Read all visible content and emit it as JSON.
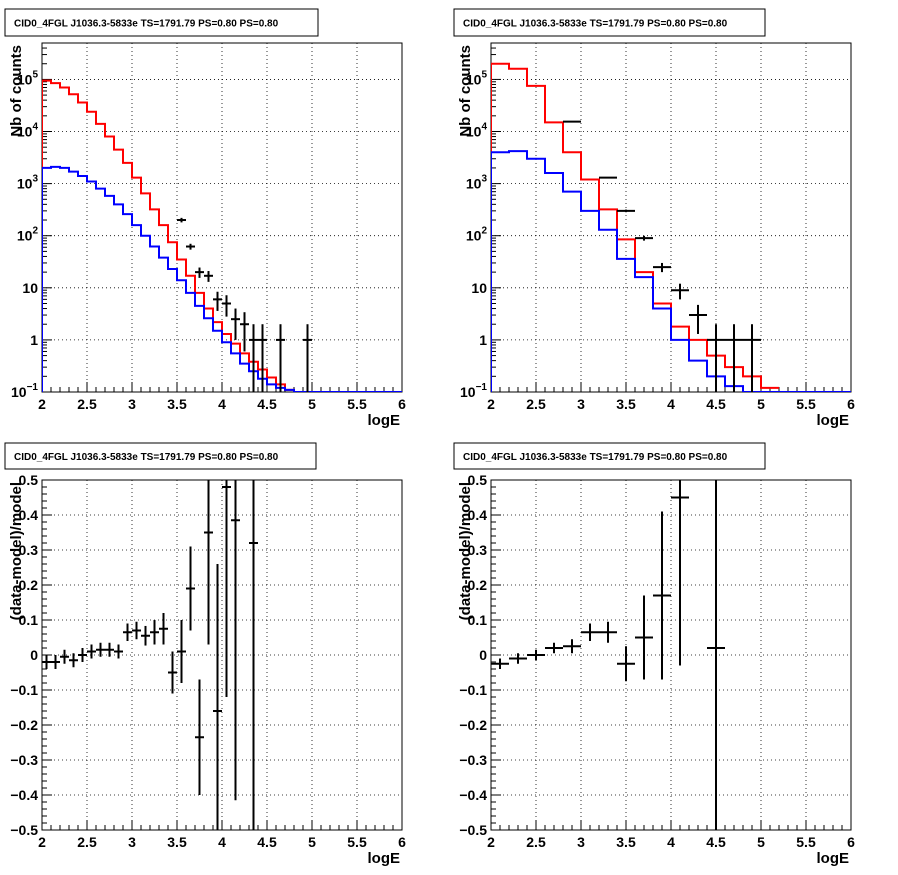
{
  "chart_data": [
    {
      "type": "line",
      "panel": "top-left",
      "title": "CID0_4FGL J1036.3-5833e TS=1791.79 PS=0.80 PS=0.80",
      "xlabel": "logE",
      "ylabel": "Nb of counts",
      "xlim": [
        2,
        6
      ],
      "ylim": [
        0.1,
        500000
      ],
      "yscale": "log",
      "grid": true,
      "xticks": [
        "2",
        "2.5",
        "3",
        "3.5",
        "4",
        "4.5",
        "5",
        "5.5",
        "6"
      ],
      "yticks": [
        {
          "value": 0.1,
          "label": "10",
          "exp": "−1"
        },
        {
          "value": 1,
          "label": "1",
          "exp": ""
        },
        {
          "value": 10,
          "label": "10",
          "exp": ""
        },
        {
          "value": 100,
          "label": "10",
          "exp": "2"
        },
        {
          "value": 1000,
          "label": "10",
          "exp": "3"
        },
        {
          "value": 10000,
          "label": "10",
          "exp": "4"
        },
        {
          "value": 100000,
          "label": "10",
          "exp": "5"
        }
      ],
      "series": [
        {
          "role": "model-total",
          "color": "#ff0000",
          "drawstyle": "steps",
          "bin_width": 0.1,
          "x": [
            2.0,
            2.1,
            2.2,
            2.3,
            2.4,
            2.5,
            2.6,
            2.7,
            2.8,
            2.9,
            3.0,
            3.1,
            3.2,
            3.3,
            3.4,
            3.5,
            3.6,
            3.7,
            3.8,
            3.9,
            4.0,
            4.1,
            4.2,
            4.3,
            4.4,
            4.5,
            4.6,
            4.7,
            4.8,
            4.9
          ],
          "y": [
            95000,
            85000,
            70000,
            52000,
            36000,
            24000,
            14000,
            8000,
            4500,
            2500,
            1300,
            650,
            320,
            160,
            75,
            35,
            17,
            8,
            4,
            2.2,
            1.3,
            0.85,
            0.55,
            0.38,
            0.27,
            0.19,
            0.14,
            0.11,
            0.1,
            0.1
          ]
        },
        {
          "role": "model-component",
          "color": "#0000ff",
          "drawstyle": "steps",
          "bin_width": 0.1,
          "x": [
            2.0,
            2.1,
            2.2,
            2.3,
            2.4,
            2.5,
            2.6,
            2.7,
            2.8,
            2.9,
            3.0,
            3.1,
            3.2,
            3.3,
            3.4,
            3.5,
            3.6,
            3.7,
            3.8,
            3.9,
            4.0,
            4.1,
            4.2,
            4.3,
            4.4,
            4.5,
            4.6,
            4.7,
            4.8,
            4.9,
            5.0,
            5.1,
            5.2,
            5.3,
            5.4,
            5.5,
            5.6,
            5.7,
            5.8,
            5.9
          ],
          "y": [
            2000,
            2100,
            2000,
            1700,
            1400,
            1100,
            800,
            580,
            400,
            260,
            160,
            100,
            62,
            38,
            23,
            14,
            8,
            4.5,
            2.6,
            1.5,
            0.9,
            0.55,
            0.35,
            0.25,
            0.18,
            0.14,
            0.12,
            0.11,
            0.1,
            0.1,
            0.1,
            0.1,
            0.1,
            0.1,
            0.1,
            0.1,
            0.1,
            0.1,
            0.1,
            0.1
          ]
        },
        {
          "role": "data",
          "color": "#000000",
          "drawstyle": "errorbars",
          "bin_width": 0.1,
          "x": [
            3.55,
            3.65,
            3.75,
            3.85,
            3.95,
            4.05,
            4.15,
            4.25,
            4.35,
            4.45,
            4.65,
            4.95
          ],
          "y": [
            200,
            62,
            20,
            17,
            6,
            5,
            2.5,
            2,
            1,
            1,
            1,
            1
          ],
          "err_low": [
            20,
            8,
            4.5,
            4,
            2.4,
            2.2,
            1.5,
            1.4,
            0.9,
            0.9,
            0.9,
            0.9
          ],
          "err_high": [
            20,
            8,
            4.5,
            4,
            2.4,
            2.2,
            1.5,
            1.4,
            1,
            1,
            1,
            1
          ]
        }
      ]
    },
    {
      "type": "line",
      "panel": "top-right",
      "title": "CID0_4FGL J1036.3-5833e TS=1791.79 PS=0.80 PS=0.80",
      "xlabel": "logE",
      "ylabel": "Nb of counts",
      "xlim": [
        2,
        6
      ],
      "ylim": [
        0.1,
        500000
      ],
      "yscale": "log",
      "grid": true,
      "xticks": [
        "2",
        "2.5",
        "3",
        "3.5",
        "4",
        "4.5",
        "5",
        "5.5",
        "6"
      ],
      "yticks": [
        {
          "value": 0.1,
          "label": "10",
          "exp": "−1"
        },
        {
          "value": 1,
          "label": "1",
          "exp": ""
        },
        {
          "value": 10,
          "label": "10",
          "exp": ""
        },
        {
          "value": 100,
          "label": "10",
          "exp": "2"
        },
        {
          "value": 1000,
          "label": "10",
          "exp": "3"
        },
        {
          "value": 10000,
          "label": "10",
          "exp": "4"
        },
        {
          "value": 100000,
          "label": "10",
          "exp": "5"
        }
      ],
      "series": [
        {
          "role": "model-total",
          "color": "#ff0000",
          "drawstyle": "steps",
          "bin_width": 0.2,
          "x": [
            2.0,
            2.2,
            2.4,
            2.6,
            2.8,
            3.0,
            3.2,
            3.4,
            3.6,
            3.8,
            4.0,
            4.2,
            4.4,
            4.6,
            4.8,
            5.0
          ],
          "y": [
            200000,
            160000,
            75000,
            15000,
            4000,
            1200,
            320,
            85,
            20,
            5,
            1.8,
            1,
            0.5,
            0.3,
            0.2,
            0.12
          ]
        },
        {
          "role": "model-component",
          "color": "#0000ff",
          "drawstyle": "steps",
          "bin_width": 0.2,
          "x": [
            2.0,
            2.2,
            2.4,
            2.6,
            2.8,
            3.0,
            3.2,
            3.4,
            3.6,
            3.8,
            4.0,
            4.2,
            4.4,
            4.6,
            4.8,
            5.0,
            5.2,
            5.4,
            5.6,
            5.8
          ],
          "y": [
            4000,
            4200,
            3000,
            1600,
            700,
            300,
            130,
            36,
            16,
            4,
            1,
            0.4,
            0.2,
            0.13,
            0.1,
            0.1,
            0.1,
            0.1,
            0.1,
            0.1
          ]
        },
        {
          "role": "data",
          "color": "#000000",
          "drawstyle": "errorbars",
          "bin_width": 0.2,
          "x": [
            2.9,
            3.3,
            3.5,
            3.7,
            3.9,
            4.1,
            4.3,
            4.5,
            4.7,
            4.9
          ],
          "y": [
            15500,
            1300,
            300,
            90,
            25,
            9,
            3,
            1,
            1,
            1
          ],
          "err_low": [
            120,
            36,
            17,
            9.5,
            5,
            3,
            1.7,
            0.9,
            0.9,
            0.9
          ],
          "err_high": [
            120,
            36,
            17,
            9.5,
            5,
            3,
            1.7,
            1,
            1,
            1
          ]
        }
      ]
    },
    {
      "type": "scatter",
      "panel": "bottom-left",
      "title": "CID0_4FGL J1036.3-5833e TS=1791.79 PS=0.80 PS=0.80",
      "xlabel": "logE",
      "ylabel": "(data-model)/model",
      "xlim": [
        2,
        6
      ],
      "ylim": [
        -0.5,
        0.5
      ],
      "yscale": "linear",
      "grid": true,
      "xticks": [
        "2",
        "2.5",
        "3",
        "3.5",
        "4",
        "4.5",
        "5",
        "5.5",
        "6"
      ],
      "yticks": [
        "−0.5",
        "−0.4",
        "−0.3",
        "−0.2",
        "−0.1",
        "0",
        "0.1",
        "0.2",
        "0.3",
        "0.4",
        "0.5"
      ],
      "series": [
        {
          "role": "data",
          "color": "#000000",
          "drawstyle": "errorbars",
          "bin_width": 0.1,
          "x": [
            2.05,
            2.15,
            2.25,
            2.35,
            2.45,
            2.55,
            2.65,
            2.75,
            2.85,
            2.95,
            3.05,
            3.15,
            3.25,
            3.35,
            3.45,
            3.55,
            3.65,
            3.75,
            3.85,
            3.95,
            4.05,
            4.15,
            4.35
          ],
          "y": [
            -0.02,
            -0.02,
            -0.005,
            -0.015,
            0.0,
            0.01,
            0.015,
            0.015,
            0.01,
            0.065,
            0.07,
            0.055,
            0.065,
            0.075,
            -0.05,
            0.01,
            0.19,
            -0.235,
            0.35,
            -0.16,
            0.48,
            0.385,
            0.32
          ],
          "err": [
            0.02,
            0.02,
            0.02,
            0.02,
            0.02,
            0.02,
            0.02,
            0.02,
            0.02,
            0.025,
            0.025,
            0.028,
            0.035,
            0.045,
            0.06,
            0.09,
            0.12,
            0.165,
            0.32,
            0.42,
            0.6,
            0.8,
            1.0
          ]
        }
      ]
    },
    {
      "type": "scatter",
      "panel": "bottom-right",
      "title": "CID0_4FGL J1036.3-5833e TS=1791.79 PS=0.80 PS=0.80",
      "xlabel": "logE",
      "ylabel": "(data-model)/model",
      "xlim": [
        2,
        6
      ],
      "ylim": [
        -0.5,
        0.5
      ],
      "yscale": "linear",
      "grid": true,
      "xticks": [
        "2",
        "2.5",
        "3",
        "3.5",
        "4",
        "4.5",
        "5",
        "5.5",
        "6"
      ],
      "yticks": [
        "−0.5",
        "−0.4",
        "−0.3",
        "−0.2",
        "−0.1",
        "0",
        "0.1",
        "0.2",
        "0.3",
        "0.4",
        "0.5"
      ],
      "series": [
        {
          "role": "data",
          "color": "#000000",
          "drawstyle": "errorbars",
          "bin_width": 0.2,
          "x": [
            2.1,
            2.3,
            2.5,
            2.7,
            2.9,
            3.1,
            3.3,
            3.5,
            3.7,
            3.9,
            4.1,
            4.5
          ],
          "y": [
            -0.025,
            -0.01,
            0.0,
            0.02,
            0.025,
            0.065,
            0.065,
            -0.025,
            0.05,
            0.17,
            0.45,
            0.02
          ],
          "err": [
            0.015,
            0.015,
            0.015,
            0.015,
            0.02,
            0.025,
            0.03,
            0.05,
            0.12,
            0.24,
            0.48,
            1.1
          ]
        }
      ]
    }
  ]
}
